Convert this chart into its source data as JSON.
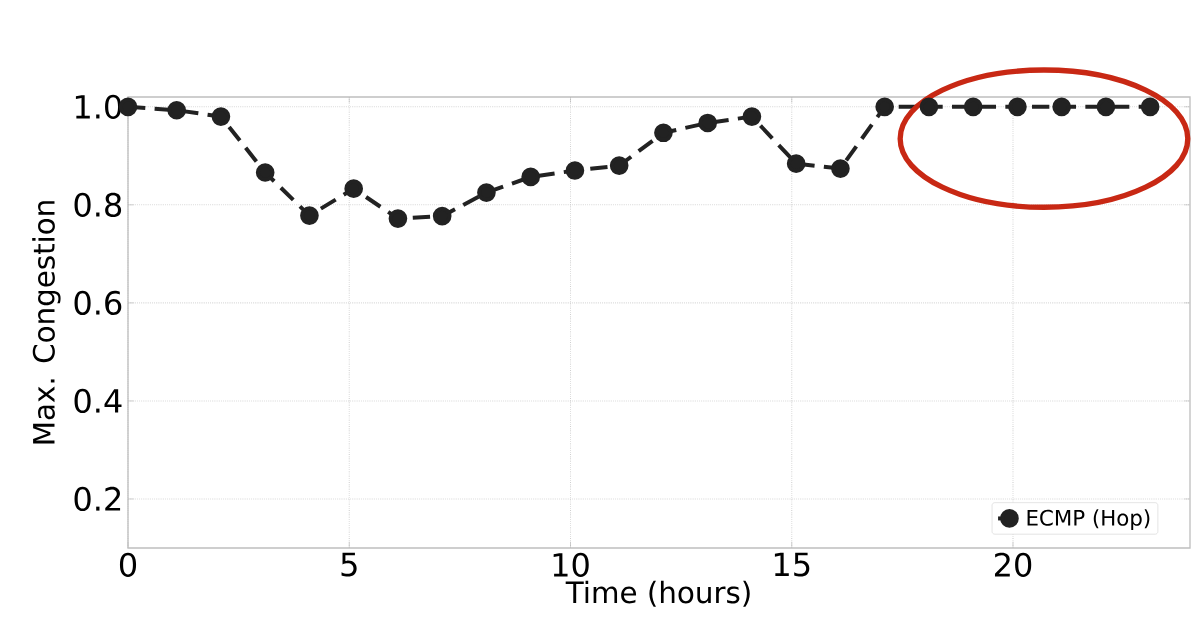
{
  "chart_data": {
    "type": "line",
    "xlabel": "Time (hours)",
    "ylabel": "Max. Congestion",
    "xlim": [
      0,
      24
    ],
    "ylim": [
      0.1,
      1.02
    ],
    "xticks": [
      0,
      5,
      10,
      15,
      20
    ],
    "yticks": [
      0.2,
      0.4,
      0.6,
      0.8,
      {
        "value": 1.0,
        "label": "1.0"
      }
    ],
    "grid": true,
    "legend": "bottom right",
    "marker": "circle",
    "line_style": "dashed",
    "series": [
      {
        "name": "ECMP (Hop)",
        "color": "#222222",
        "x": [
          0,
          1.1,
          2.1,
          3.1,
          4.1,
          5.1,
          6.1,
          7.1,
          8.1,
          9.1,
          10.1,
          11.1,
          12.1,
          13.1,
          14.1,
          15.1,
          16.1,
          17.1,
          18.1,
          19.1,
          20.1,
          21.1,
          22.1,
          23.1
        ],
        "values": [
          1.0,
          0.993,
          0.98,
          0.866,
          0.778,
          0.833,
          0.772,
          0.777,
          0.825,
          0.857,
          0.87,
          0.88,
          0.947,
          0.967,
          0.98,
          0.884,
          0.874,
          1.0,
          1.0,
          1.0,
          1.0,
          1.0,
          1.0,
          1.0
        ]
      }
    ]
  }
}
